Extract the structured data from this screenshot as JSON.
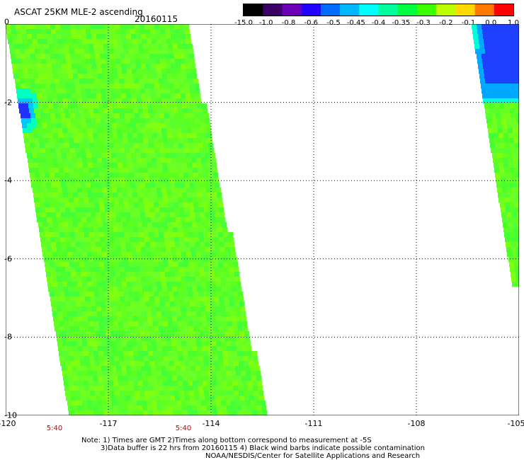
{
  "title": "ASCAT 25KM MLE-2 ascending",
  "date": "20160115",
  "colorbar": {
    "labels": [
      "-15.0",
      "-1.0",
      "-0.8",
      "-0.6",
      "-0.5",
      "-0.45",
      "-0.4",
      "-0.35",
      "-0.3",
      "-0.2",
      "-0.1",
      "0.0",
      "1.0"
    ],
    "colors": [
      "#000000",
      "#3a0068",
      "#6c00b8",
      "#2000ff",
      "#006cff",
      "#00b8ff",
      "#00ffff",
      "#00ff9c",
      "#00ff3c",
      "#3cff00",
      "#bcff00",
      "#ffd800",
      "#ff7800",
      "#ff0000"
    ]
  },
  "x_axis": {
    "labels": [
      "-120",
      "-117",
      "-114",
      "-111",
      "-108",
      "-105"
    ]
  },
  "y_axis": {
    "labels": [
      "0",
      "-2",
      "-4",
      "-6",
      "-8",
      "-10"
    ]
  },
  "time_labels": [
    "5:40",
    "5:40"
  ],
  "notes": {
    "line1": "Note: 1) Times are GMT 2)Times along bottom correspond to measurement at -5S",
    "line2": "3)Data buffer is 22 hrs from 20160115 4) Black wind barbs indicate possible contamination",
    "line3": "NOAA/NESDIS/Center for Satellite Applications and Research"
  }
}
